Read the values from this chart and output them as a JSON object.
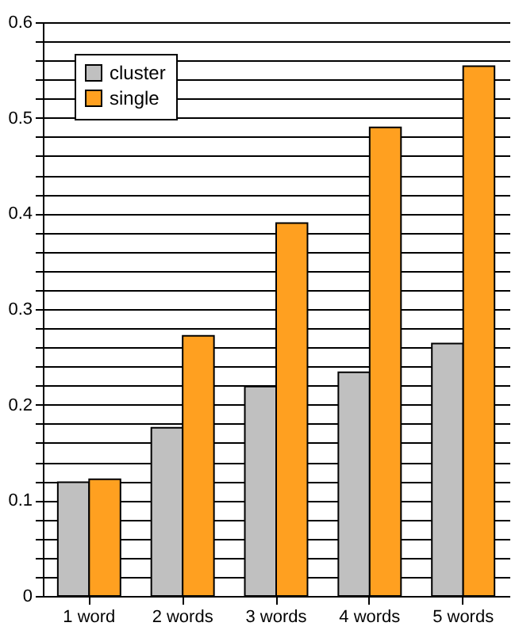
{
  "chart_data": {
    "type": "bar",
    "categories": [
      "1 word",
      "2 words",
      "3 words",
      "4 words",
      "5 words"
    ],
    "series": [
      {
        "name": "cluster",
        "color": "#c0c0c0",
        "values": [
          0.119,
          0.176,
          0.219,
          0.234,
          0.264
        ]
      },
      {
        "name": "single",
        "color": "#ffa020",
        "values": [
          0.122,
          0.272,
          0.39,
          0.49,
          0.554
        ]
      }
    ],
    "ylim": [
      0,
      0.6
    ],
    "yticks": [
      0,
      {
        "value": 0.02,
        "label": null
      },
      {
        "value": 0.04,
        "label": null
      },
      {
        "value": 0.06,
        "label": null
      },
      {
        "value": 0.08,
        "label": null
      },
      0.1,
      {
        "value": 0.12,
        "label": null
      },
      {
        "value": 0.14,
        "label": null
      },
      {
        "value": 0.16,
        "label": null
      },
      {
        "value": 0.18,
        "label": null
      },
      0.2,
      {
        "value": 0.22,
        "label": null
      },
      {
        "value": 0.24,
        "label": null
      },
      {
        "value": 0.26,
        "label": null
      },
      {
        "value": 0.28,
        "label": null
      },
      0.3,
      {
        "value": 0.32,
        "label": null
      },
      {
        "value": 0.34,
        "label": null
      },
      {
        "value": 0.36,
        "label": null
      },
      {
        "value": 0.38,
        "label": null
      },
      0.4,
      {
        "value": 0.42,
        "label": null
      },
      {
        "value": 0.44,
        "label": null
      },
      {
        "value": 0.46,
        "label": null
      },
      {
        "value": 0.48,
        "label": null
      },
      0.5,
      {
        "value": 0.52,
        "label": null
      },
      {
        "value": 0.54,
        "label": null
      },
      {
        "value": 0.56,
        "label": null
      },
      {
        "value": 0.58,
        "label": null
      },
      0.6
    ],
    "grid": "y",
    "legend": "top left"
  }
}
